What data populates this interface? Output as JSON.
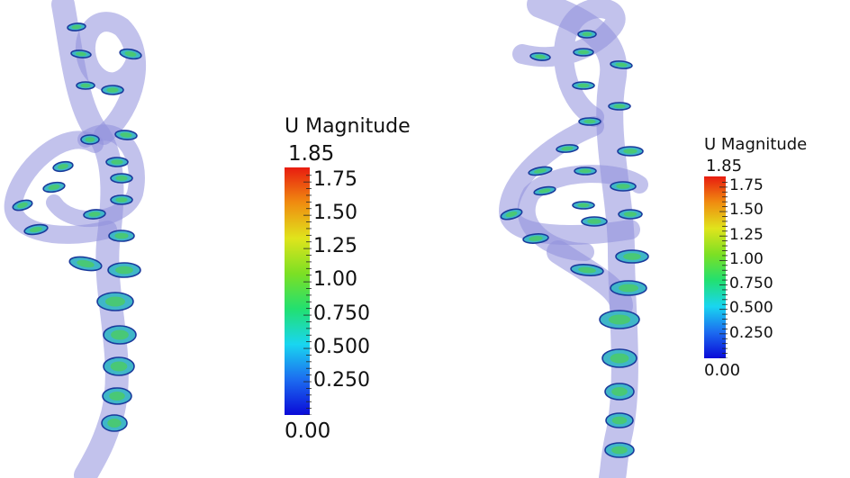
{
  "legends": {
    "left": {
      "title": "U Magnitude",
      "max": "1.85",
      "min": "0.00",
      "ticks": [
        "1.75",
        "1.50",
        "1.25",
        "1.00",
        "0.750",
        "0.500",
        "0.250"
      ]
    },
    "right": {
      "title": "U Magnitude",
      "max": "1.85",
      "min": "0.00",
      "ticks": [
        "1.75",
        "1.50",
        "1.25",
        "1.00",
        "0.750",
        "0.500",
        "0.250"
      ]
    }
  },
  "colormap": [
    "#0a0ad8",
    "#1c6cf0",
    "#19d6f0",
    "#22e070",
    "#7ce024",
    "#e0e41c",
    "#f08c10",
    "#e81c10"
  ],
  "colors": {
    "vessel": "#8f8fdc",
    "section_edge": "#1a3a9c",
    "section_fill": "#3fb6c8"
  }
}
